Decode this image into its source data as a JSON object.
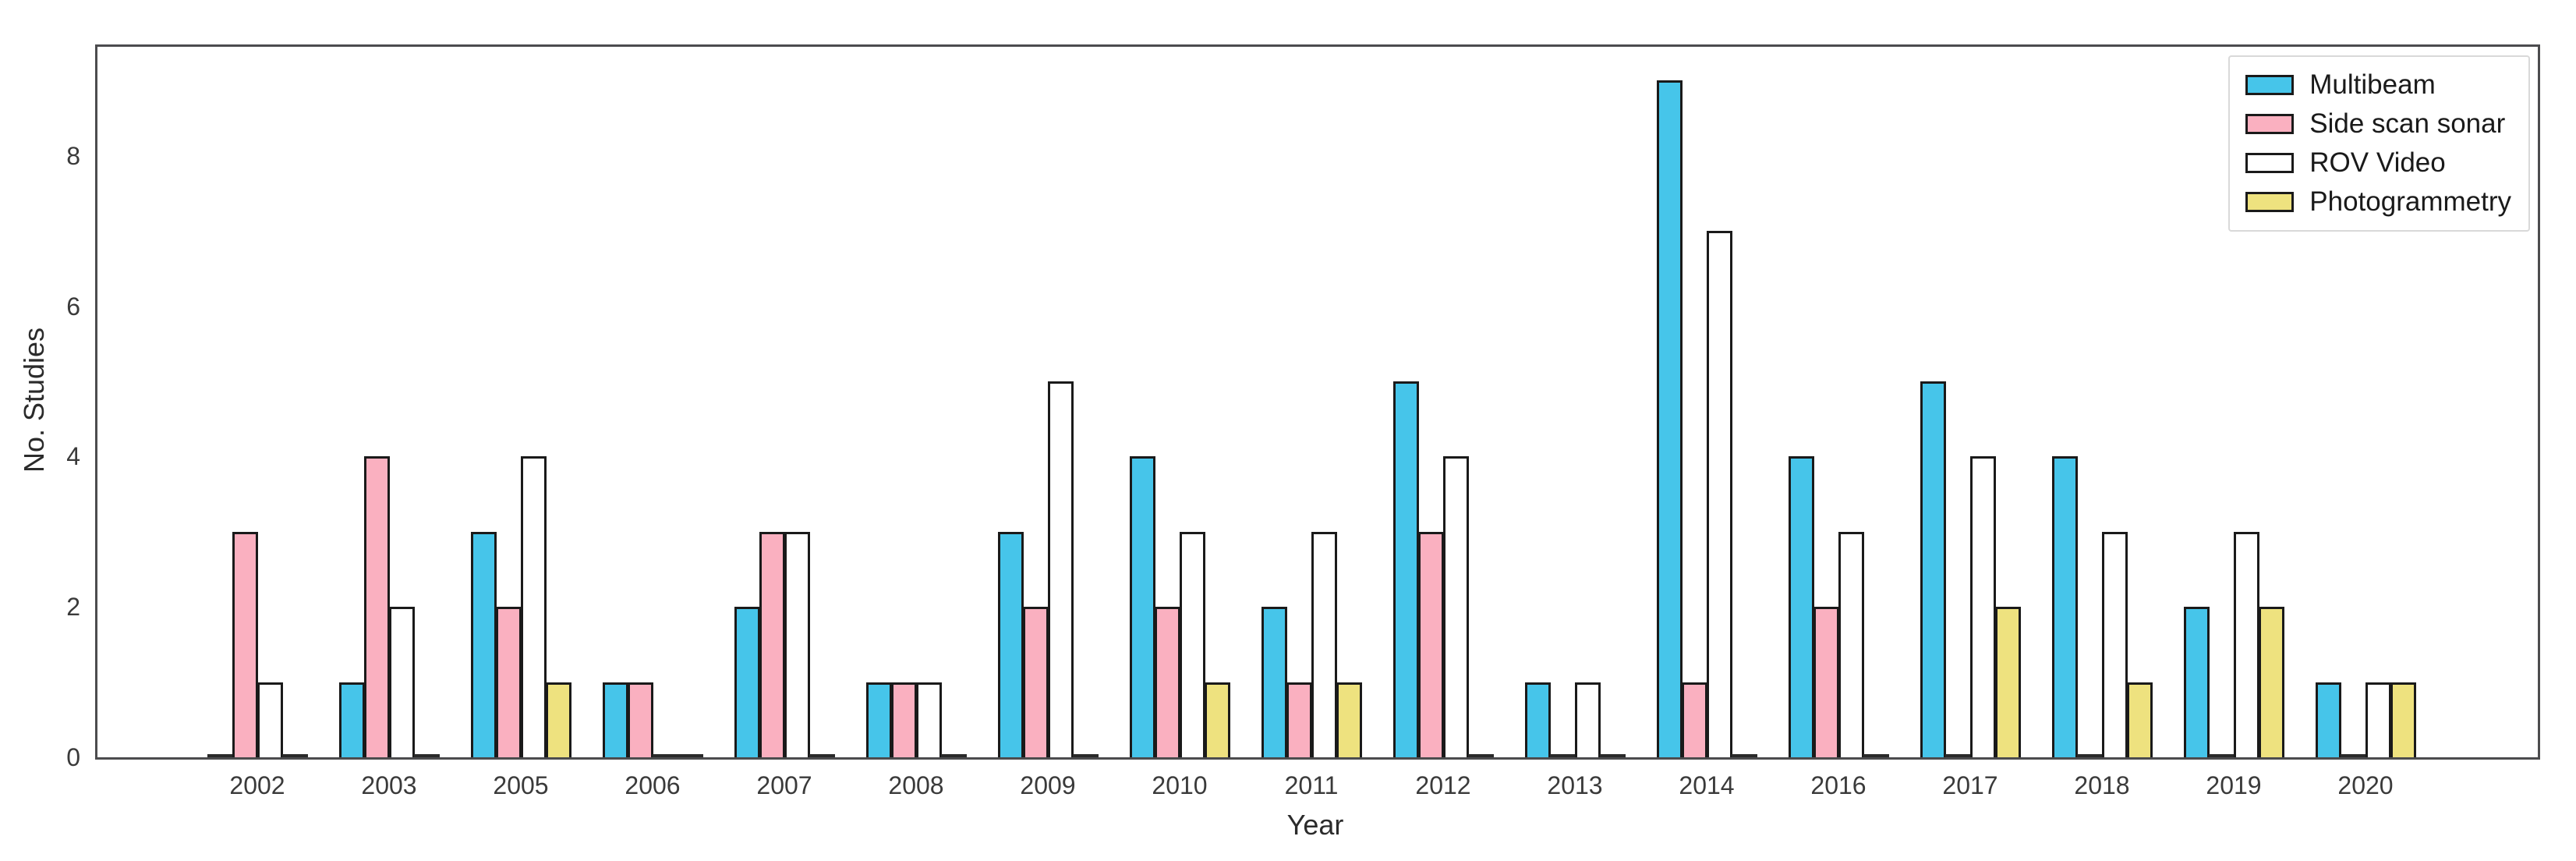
{
  "chart_data": {
    "type": "bar",
    "title": "",
    "xlabel": "Year",
    "ylabel": "No. Studies",
    "categories": [
      "2002",
      "2003",
      "2005",
      "2006",
      "2007",
      "2008",
      "2009",
      "2010",
      "2011",
      "2012",
      "2013",
      "2014",
      "2016",
      "2017",
      "2018",
      "2019",
      "2020"
    ],
    "series": [
      {
        "name": "Multibeam",
        "color": "#46c5ea",
        "values": [
          0,
          1,
          3,
          1,
          2,
          1,
          3,
          4,
          2,
          5,
          1,
          9,
          4,
          5,
          4,
          2,
          1
        ]
      },
      {
        "name": "Side scan sonar",
        "color": "#fab0c0",
        "values": [
          3,
          4,
          2,
          1,
          3,
          1,
          2,
          2,
          1,
          3,
          0,
          1,
          2,
          0,
          0,
          0,
          0
        ]
      },
      {
        "name": "ROV Video",
        "color": "#ffffff",
        "values": [
          1,
          2,
          4,
          0,
          3,
          1,
          5,
          3,
          3,
          4,
          1,
          7,
          3,
          4,
          3,
          3,
          1
        ]
      },
      {
        "name": "Photogrammetry",
        "color": "#eee27f",
        "values": [
          0,
          0,
          1,
          0,
          0,
          0,
          0,
          1,
          1,
          0,
          0,
          0,
          0,
          2,
          1,
          2,
          1
        ]
      }
    ],
    "yticks": [
      0,
      2,
      4,
      6,
      8
    ],
    "ylim": [
      0,
      9.45
    ],
    "grid": false,
    "legend_position": "top-right",
    "bar_edge_color": "#1a1a1a",
    "axis_color": "#4c4c4e"
  }
}
